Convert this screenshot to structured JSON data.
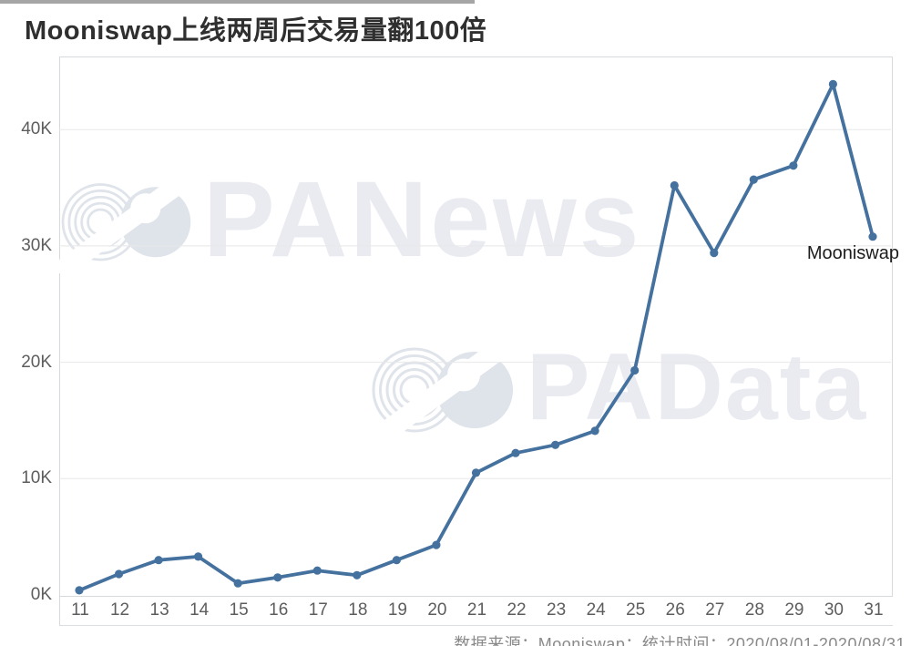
{
  "page": {
    "title": "Mooniswap上线两周后交易量翻100倍",
    "footer": "数据来源：Mooniswap；统计时间：2020/08/01-2020/08/31",
    "series_annotation": "Mooniswap"
  },
  "watermarks": {
    "first_text": "PANews",
    "second_text": "PAData"
  },
  "colors": {
    "line": "#45719f",
    "marker": "#45719f",
    "grid": "#e8e8e8",
    "plot_border": "#d7dadd",
    "watermark_text": "#e9ebf1",
    "watermark_logo": "#dfe3ea",
    "axis_text": "#5d5d5d",
    "title_text": "#2f2f2f",
    "footer_text": "#8a8a8a"
  },
  "chart_data": {
    "type": "line",
    "title": "Mooniswap上线两周后交易量翻100倍",
    "series_name": "Mooniswap",
    "x": [
      11,
      12,
      13,
      14,
      15,
      16,
      17,
      18,
      19,
      20,
      21,
      22,
      23,
      24,
      25,
      26,
      27,
      28,
      29,
      30,
      31
    ],
    "values": [
      0.4,
      1.8,
      3.0,
      3.3,
      1.0,
      1.5,
      2.1,
      1.7,
      3.0,
      4.3,
      10.5,
      12.2,
      12.9,
      14.1,
      19.3,
      35.2,
      29.4,
      35.7,
      36.9,
      43.9,
      30.8
    ],
    "unit": "K",
    "xlabel": "",
    "ylabel": "",
    "ylim": [
      0,
      46.3
    ],
    "yticks": {
      "values": [
        0,
        10,
        20,
        30,
        40
      ],
      "labels": [
        "0K",
        "10K",
        "20K",
        "30K",
        "40K"
      ]
    },
    "grid": true,
    "legend_position": "end-of-line annotation at last point"
  }
}
